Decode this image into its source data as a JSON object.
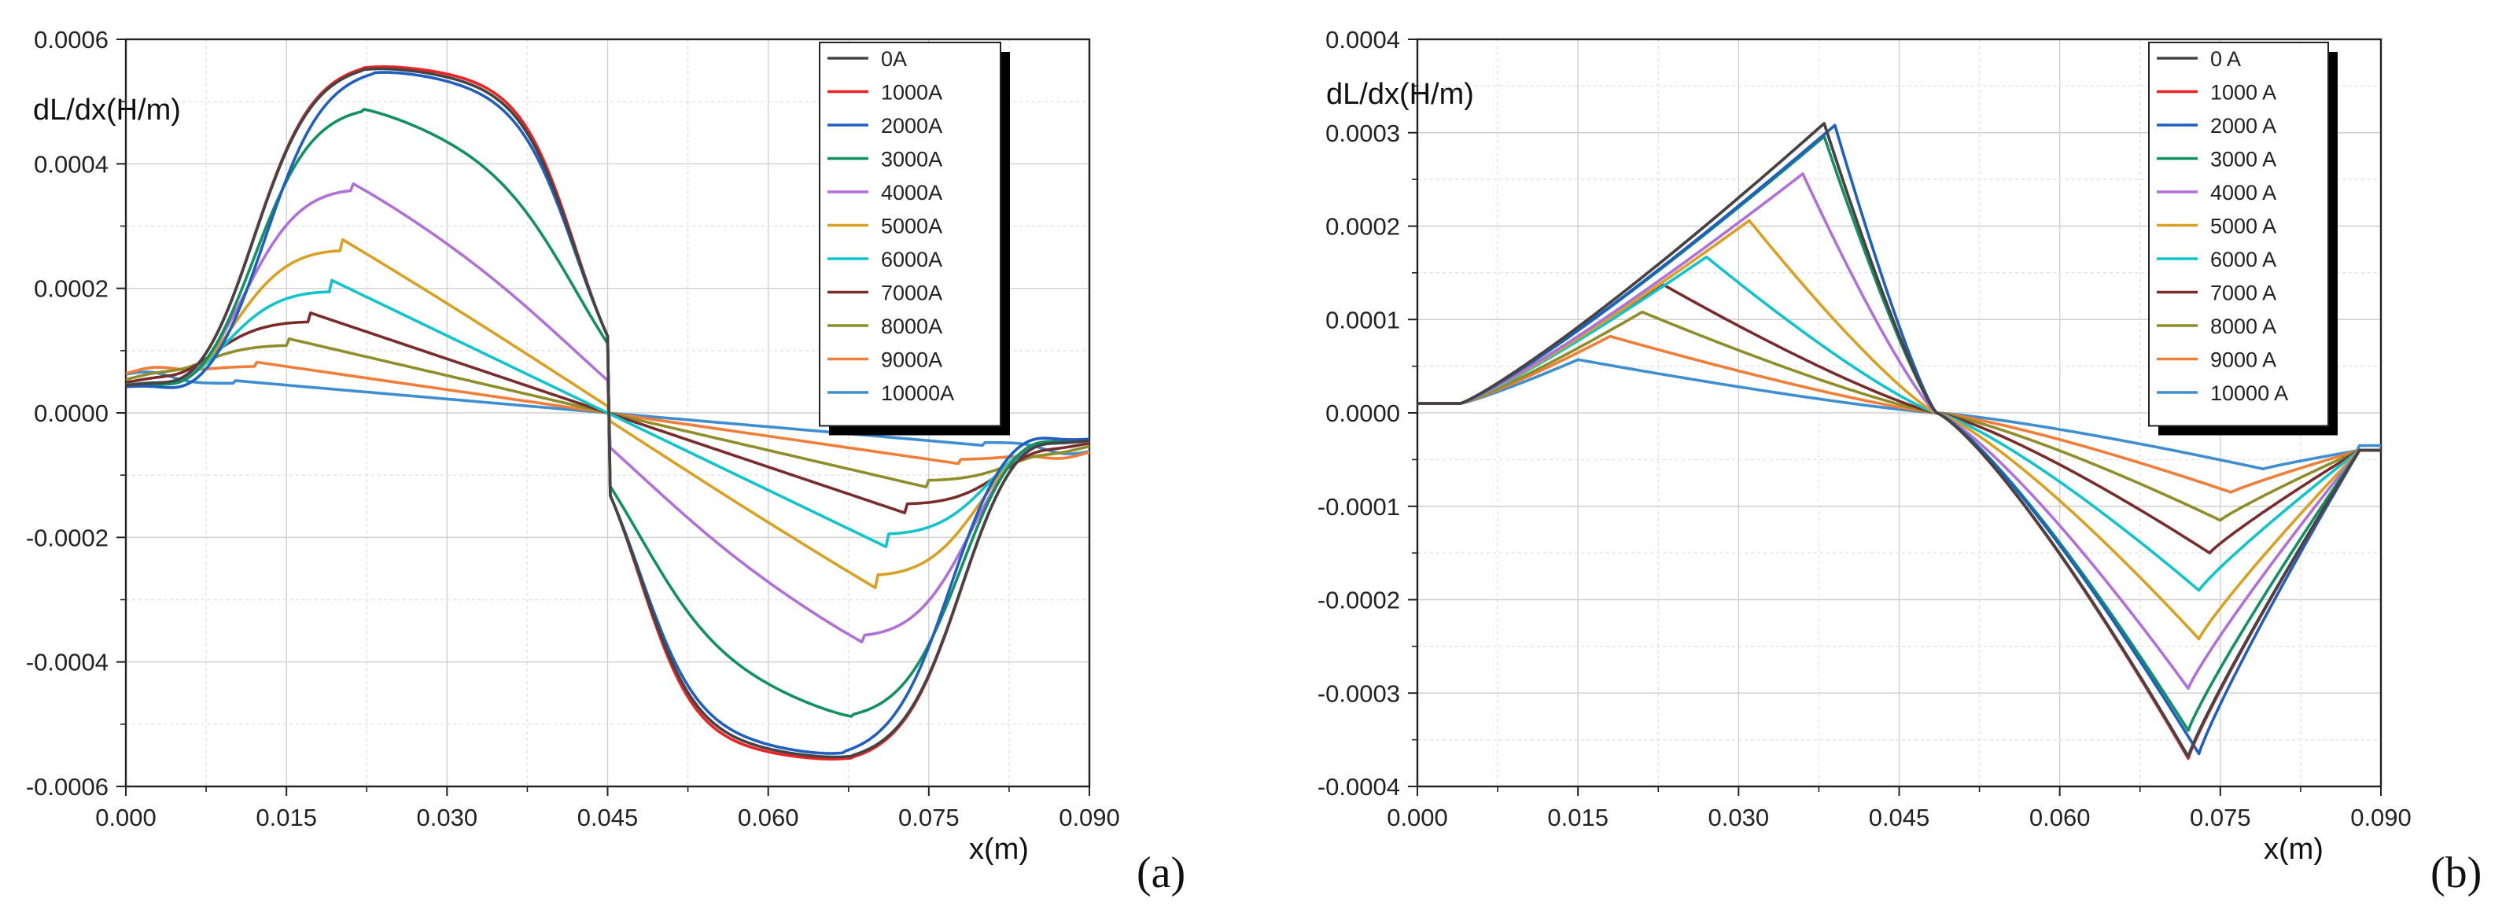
{
  "chart_data": [
    {
      "type": "line",
      "panel_label": "(a)",
      "ylabel": "dL/dx(H/m)",
      "xlabel": "x(m)",
      "xlim": [
        0,
        0.09
      ],
      "ylim": [
        -0.0006,
        0.0006
      ],
      "xticks": [
        "0.000",
        "0.015",
        "0.030",
        "0.045",
        "0.060",
        "0.075",
        "0.090"
      ],
      "yticks": [
        "0.0006",
        "0.0004",
        "0.0002",
        "0.0000",
        "-0.0002",
        "-0.0004",
        "-0.0006"
      ],
      "grid": true,
      "legend_position": "top-right",
      "series": [
        {
          "name": "0A",
          "color": "#444444",
          "peak_x": 0.022,
          "peak": 0.000565,
          "lw": 2,
          "ls": 2,
          "tail": 4e-05
        },
        {
          "name": "1000A",
          "color": "#ee2222",
          "peak_x": 0.022,
          "peak": 0.000568,
          "lw": 2,
          "ls": 2,
          "tail": 4e-05
        },
        {
          "name": "2000A",
          "color": "#1f5fc0",
          "peak_x": 0.023,
          "peak": 0.00056,
          "lw": 2.2,
          "ls": 2.2,
          "tail": 4e-05
        },
        {
          "name": "3000A",
          "color": "#119060",
          "peak_x": 0.022,
          "peak": 0.0005,
          "lw": 3.6,
          "ls": 3.6,
          "tail": 4e-05
        },
        {
          "name": "4000A",
          "color": "#b070d8",
          "peak_x": 0.021,
          "peak": 0.000378,
          "lw": 4.6,
          "ls": 4.6,
          "tail": 4e-05
        },
        {
          "name": "5000A",
          "color": "#d9a021",
          "peak_x": 0.02,
          "peak": 0.000283,
          "lw": 5.2,
          "ls": 5.2,
          "tail": 4e-05
        },
        {
          "name": "6000A",
          "color": "#11c4cc",
          "peak_x": 0.019,
          "peak": 0.000215,
          "lw": 5.6,
          "ls": 5.6,
          "tail": 4e-05
        },
        {
          "name": "7000A",
          "color": "#7a2c2c",
          "peak_x": 0.017,
          "peak": 0.000162,
          "lw": 5.6,
          "ls": 5.6,
          "tail": 4e-05
        },
        {
          "name": "8000A",
          "color": "#8e8e2a",
          "peak_x": 0.015,
          "peak": 0.00012,
          "lw": 5.6,
          "ls": 5.6,
          "tail": 4e-05
        },
        {
          "name": "9000A",
          "color": "#f07d38",
          "peak_x": 0.012,
          "peak": 8.2e-05,
          "lw": 5.6,
          "ls": 5.6,
          "tail": 4e-05
        },
        {
          "name": "10000A",
          "color": "#3f8fd0",
          "peak_x": 0.01,
          "peak": 5.2e-05,
          "lw": 5.6,
          "ls": 5.6,
          "tail": 4e-05
        }
      ]
    },
    {
      "type": "line",
      "panel_label": "(b)",
      "ylabel": "dL/dx(H/m)",
      "xlabel": "x(m)",
      "xlim": [
        0,
        0.09
      ],
      "ylim": [
        -0.0004,
        0.0004
      ],
      "xticks": [
        "0.000",
        "0.015",
        "0.030",
        "0.045",
        "0.060",
        "0.075",
        "0.090"
      ],
      "yticks": [
        "0.0004",
        "0.0003",
        "0.0002",
        "0.0001",
        "0.0000",
        "-0.0001",
        "-0.0002",
        "-0.0003",
        "-0.0004"
      ],
      "grid": true,
      "legend_position": "top-right",
      "series": [
        {
          "name": "0 A",
          "color": "#444444",
          "peak_x": 0.038,
          "peak": 0.00031,
          "nt_x": 0.072,
          "trough": -0.000368,
          "tail": 1e-05
        },
        {
          "name": "1000 A",
          "color": "#ee2222",
          "peak_x": 0.038,
          "peak": 0.00031,
          "nt_x": 0.072,
          "trough": -0.00037,
          "tail": 1e-05
        },
        {
          "name": "2000 A",
          "color": "#1f5fc0",
          "peak_x": 0.039,
          "peak": 0.000308,
          "nt_x": 0.073,
          "trough": -0.000365,
          "tail": 1e-05
        },
        {
          "name": "3000 A",
          "color": "#119060",
          "peak_x": 0.038,
          "peak": 0.000296,
          "nt_x": 0.072,
          "trough": -0.00034,
          "tail": 1e-05
        },
        {
          "name": "4000 A",
          "color": "#b070d8",
          "peak_x": 0.036,
          "peak": 0.000256,
          "nt_x": 0.072,
          "trough": -0.000295,
          "tail": 1e-05
        },
        {
          "name": "5000 A",
          "color": "#d9a021",
          "peak_x": 0.031,
          "peak": 0.000206,
          "nt_x": 0.073,
          "trough": -0.000242,
          "tail": 1e-05
        },
        {
          "name": "6000 A",
          "color": "#11c4cc",
          "peak_x": 0.027,
          "peak": 0.000167,
          "nt_x": 0.073,
          "trough": -0.00019,
          "tail": 1e-05
        },
        {
          "name": "7000 A",
          "color": "#7a2c2c",
          "peak_x": 0.023,
          "peak": 0.000137,
          "nt_x": 0.074,
          "trough": -0.00015,
          "tail": 1e-05
        },
        {
          "name": "8000 A",
          "color": "#8e8e2a",
          "peak_x": 0.021,
          "peak": 0.000108,
          "nt_x": 0.075,
          "trough": -0.000115,
          "tail": 1e-05
        },
        {
          "name": "9000 A",
          "color": "#f07d38",
          "peak_x": 0.018,
          "peak": 8.2e-05,
          "nt_x": 0.076,
          "trough": -8.5e-05,
          "tail": 1e-05
        },
        {
          "name": "10000 A",
          "color": "#3f8fd0",
          "peak_x": 0.015,
          "peak": 5.7e-05,
          "nt_x": 0.079,
          "trough": -6e-05,
          "tail": 1e-05
        }
      ]
    }
  ]
}
